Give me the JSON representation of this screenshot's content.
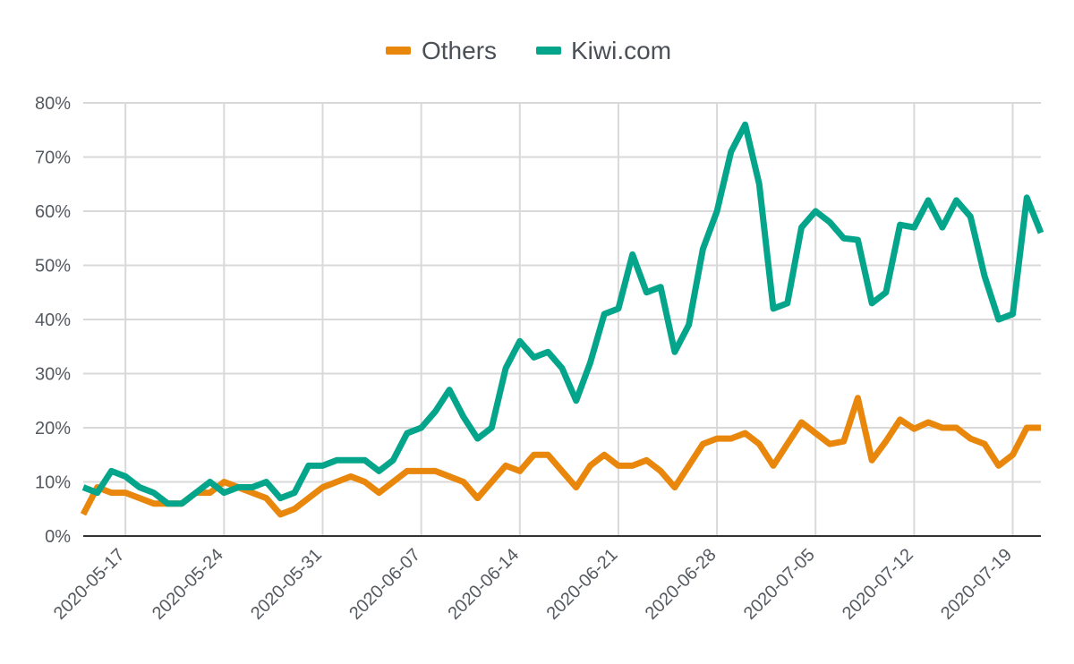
{
  "chart_data": {
    "type": "line",
    "legend_position": "top",
    "grid": true,
    "x_start": "2020-05-14",
    "x_end": "2020-07-21",
    "ylim": [
      0,
      80
    ],
    "y_ticks": [
      0,
      10,
      20,
      30,
      40,
      50,
      60,
      70,
      80
    ],
    "y_tick_labels": [
      "0%",
      "10%",
      "20%",
      "30%",
      "40%",
      "50%",
      "60%",
      "70%",
      "80%"
    ],
    "x_tick_labels": [
      "2020-05-17",
      "2020-05-24",
      "2020-05-31",
      "2020-06-07",
      "2020-06-14",
      "2020-06-21",
      "2020-06-28",
      "2020-07-05",
      "2020-07-12",
      "2020-07-19"
    ],
    "series": [
      {
        "name": "Others",
        "color": "#e8870c",
        "values": [
          4,
          9,
          8,
          8,
          7,
          6,
          6,
          6,
          8,
          8,
          10,
          9,
          8,
          7,
          4,
          5,
          7,
          9,
          10,
          11,
          10,
          8,
          10,
          12,
          12,
          12,
          11,
          10,
          7,
          10,
          13,
          12,
          15,
          15,
          12,
          9,
          13,
          15,
          13,
          13,
          14,
          12,
          9,
          13,
          17,
          18,
          18,
          19,
          17,
          13,
          17,
          21,
          19,
          17,
          17.5,
          25.5,
          14,
          17.5,
          21.5,
          19.8,
          21,
          20,
          20,
          18,
          17,
          13,
          15,
          20,
          20
        ]
      },
      {
        "name": "Kiwi.com",
        "color": "#05a58b",
        "values": [
          9,
          8,
          12,
          11,
          9,
          8,
          6,
          6,
          8,
          10,
          8,
          9,
          9,
          10,
          7,
          8,
          13,
          13,
          14,
          14,
          14,
          12,
          14,
          19,
          20,
          23,
          27,
          22,
          18,
          20,
          31,
          36,
          33,
          34,
          31,
          25,
          32,
          41,
          42,
          52,
          45,
          46,
          34,
          39,
          53,
          60,
          71,
          76,
          65,
          42,
          43,
          57,
          60,
          58,
          55,
          54.7,
          43,
          45,
          57.5,
          57,
          62,
          57,
          62,
          59,
          48,
          40,
          41,
          62.5,
          56
        ]
      }
    ]
  }
}
